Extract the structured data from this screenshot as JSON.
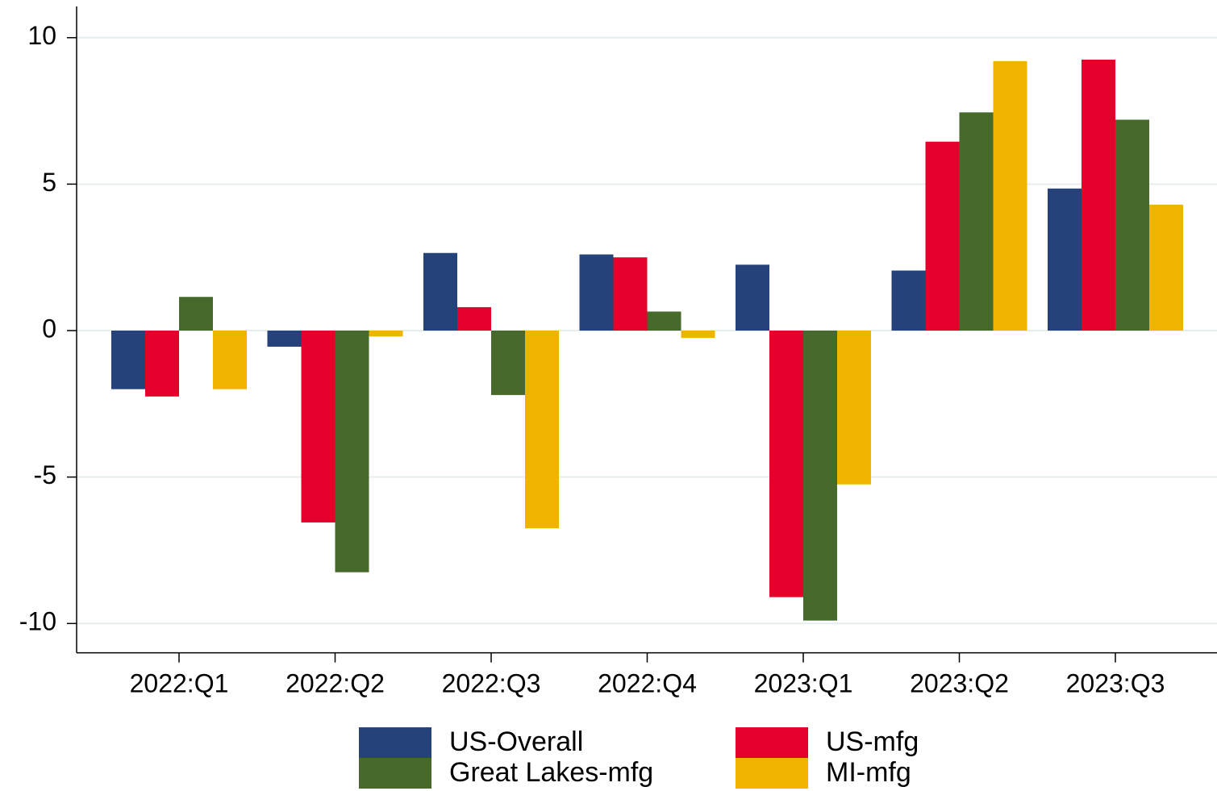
{
  "chart_data": {
    "type": "bar",
    "categories": [
      "2022:Q1",
      "2022:Q2",
      "2022:Q3",
      "2022:Q4",
      "2023:Q1",
      "2023:Q2",
      "2023:Q3"
    ],
    "series": [
      {
        "name": "US-Overall",
        "color": "#26427a",
        "values": [
          -2.0,
          -0.55,
          2.65,
          2.6,
          2.25,
          2.05,
          4.85
        ]
      },
      {
        "name": "US-mfg",
        "color": "#e4002b",
        "values": [
          -2.25,
          -6.55,
          0.8,
          2.5,
          -9.1,
          6.45,
          9.25
        ]
      },
      {
        "name": "Great Lakes-mfg",
        "color": "#476a2c",
        "values": [
          1.15,
          -8.25,
          -2.2,
          0.65,
          -9.9,
          7.45,
          7.2
        ]
      },
      {
        "name": "MI-mfg",
        "color": "#f0b400",
        "values": [
          -2.0,
          -0.2,
          -6.75,
          -0.25,
          -5.25,
          9.2,
          4.3
        ]
      }
    ],
    "ylim": [
      -11,
      11
    ],
    "yticks": [
      -10,
      -5,
      0,
      5,
      10
    ],
    "grid": true,
    "legend": "bottom"
  }
}
